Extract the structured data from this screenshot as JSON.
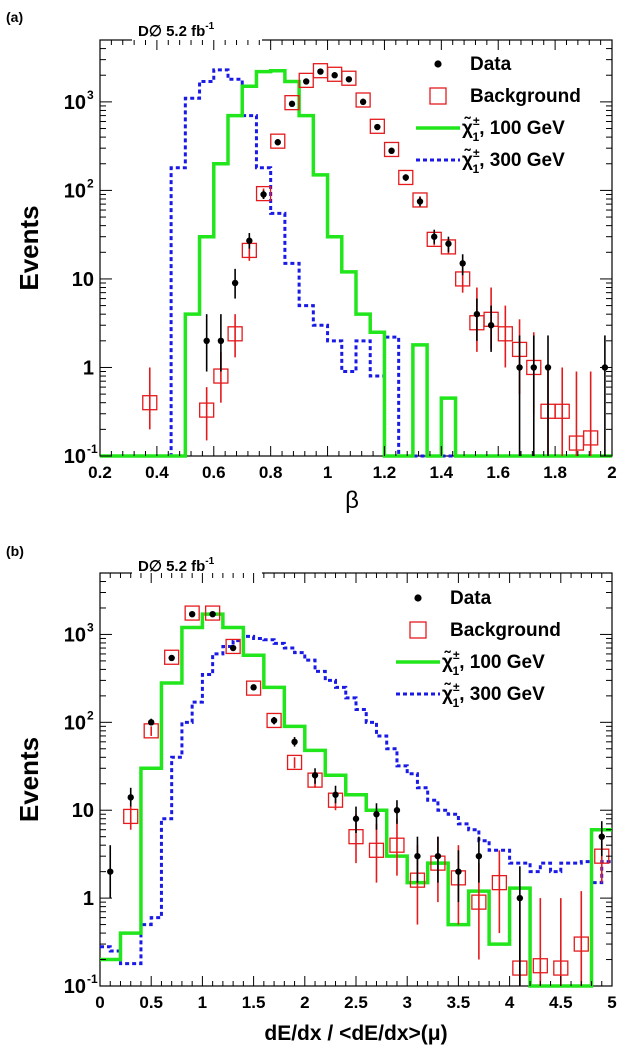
{
  "figure": "two stacked histograms with logarithmic y axes",
  "colors": {
    "data": "#000000",
    "background": "#e41a1c",
    "signal_100": "#22e61c",
    "signal_300": "#1a1ae6",
    "errorbar": "#e41a1c"
  },
  "chart_data": [
    {
      "type": "histogram",
      "panel_label": "(a)",
      "title": "D∅ 5.2 fb",
      "title_sup": "-1",
      "xlabel": "β",
      "ylabel": "Events",
      "xlim": [
        0.2,
        2.0
      ],
      "ylim": [
        0.1,
        5000
      ],
      "yscale": "log",
      "xticks": [
        "0.2",
        "0.4",
        "0.6",
        "0.8",
        "1",
        "1.2",
        "1.4",
        "1.6",
        "1.8",
        "2"
      ],
      "xtick_values": [
        0.2,
        0.4,
        0.6,
        0.8,
        1.0,
        1.2,
        1.4,
        1.6,
        1.8,
        2.0
      ],
      "ytick_labels": [
        {
          "base": "10",
          "exp": "-1",
          "v": 0.1
        },
        {
          "base": "1",
          "exp": "",
          "v": 1
        },
        {
          "base": "10",
          "exp": "",
          "v": 10
        },
        {
          "base": "10",
          "exp": "2",
          "v": 100
        },
        {
          "base": "10",
          "exp": "3",
          "v": 1000
        }
      ],
      "legend": {
        "position": "top-right",
        "entries": [
          {
            "label": "Data",
            "marker": "dot"
          },
          {
            "label": "Background",
            "marker": "square"
          },
          {
            "label": ", 100 GeV",
            "symbol": "χ̃",
            "sup": "±",
            "sub": "1",
            "marker": "green-line"
          },
          {
            "label": ", 300 GeV",
            "symbol": "χ̃",
            "sup": "±",
            "sub": "1",
            "marker": "blue-dash"
          }
        ]
      },
      "data_points": [
        {
          "x": 0.575,
          "y": 2,
          "lo": 0.9,
          "hi": 4
        },
        {
          "x": 0.625,
          "y": 2,
          "lo": 0.9,
          "hi": 4
        },
        {
          "x": 0.675,
          "y": 9,
          "lo": 6,
          "hi": 13
        },
        {
          "x": 0.725,
          "y": 27,
          "lo": 22,
          "hi": 33
        },
        {
          "x": 0.775,
          "y": 90,
          "lo": 80,
          "hi": 100
        },
        {
          "x": 0.825,
          "y": 350,
          "lo": 330,
          "hi": 370
        },
        {
          "x": 0.875,
          "y": 950,
          "lo": 920,
          "hi": 980
        },
        {
          "x": 0.925,
          "y": 1700,
          "lo": 1660,
          "hi": 1740
        },
        {
          "x": 0.975,
          "y": 2200,
          "lo": 2150,
          "hi": 2250
        },
        {
          "x": 1.025,
          "y": 2000,
          "lo": 1950,
          "hi": 2050
        },
        {
          "x": 1.075,
          "y": 1800,
          "lo": 1750,
          "hi": 1850
        },
        {
          "x": 1.125,
          "y": 1000,
          "lo": 970,
          "hi": 1030
        },
        {
          "x": 1.175,
          "y": 520,
          "lo": 500,
          "hi": 540
        },
        {
          "x": 1.225,
          "y": 280,
          "lo": 265,
          "hi": 295
        },
        {
          "x": 1.275,
          "y": 140,
          "lo": 128,
          "hi": 152
        },
        {
          "x": 1.325,
          "y": 75,
          "lo": 66,
          "hi": 84
        },
        {
          "x": 1.375,
          "y": 30,
          "lo": 25,
          "hi": 36
        },
        {
          "x": 1.425,
          "y": 25,
          "lo": 20,
          "hi": 30
        },
        {
          "x": 1.475,
          "y": 15,
          "lo": 11,
          "hi": 19
        },
        {
          "x": 1.525,
          "y": 4,
          "lo": 2,
          "hi": 6
        },
        {
          "x": 1.575,
          "y": 3,
          "lo": 1.5,
          "hi": 5
        },
        {
          "x": 1.675,
          "y": 1,
          "lo": 0.1,
          "hi": 2.3
        },
        {
          "x": 1.725,
          "y": 1,
          "lo": 0.1,
          "hi": 2.3
        },
        {
          "x": 1.775,
          "y": 1,
          "lo": 0.1,
          "hi": 2.3
        },
        {
          "x": 1.975,
          "y": 1,
          "lo": 0.1,
          "hi": 2.3
        }
      ],
      "background_points": [
        {
          "x": 0.375,
          "y": 0.4,
          "lo": 0.2,
          "hi": 1.0
        },
        {
          "x": 0.575,
          "y": 0.33,
          "lo": 0.15,
          "hi": 0.6
        },
        {
          "x": 0.625,
          "y": 0.8,
          "lo": 0.4,
          "hi": 1.5
        },
        {
          "x": 0.675,
          "y": 2.4,
          "lo": 1.3,
          "hi": 4
        },
        {
          "x": 0.725,
          "y": 21,
          "lo": 16,
          "hi": 26
        },
        {
          "x": 0.775,
          "y": 92,
          "lo": 80,
          "hi": 105
        },
        {
          "x": 0.825,
          "y": 360,
          "lo": 340,
          "hi": 380
        },
        {
          "x": 0.875,
          "y": 980,
          "lo": 950,
          "hi": 1010
        },
        {
          "x": 0.925,
          "y": 1750,
          "lo": 1700,
          "hi": 1800
        },
        {
          "x": 0.975,
          "y": 2250,
          "lo": 2200,
          "hi": 2300
        },
        {
          "x": 1.025,
          "y": 2050,
          "lo": 2000,
          "hi": 2100
        },
        {
          "x": 1.075,
          "y": 1850,
          "lo": 1800,
          "hi": 1900
        },
        {
          "x": 1.125,
          "y": 1050,
          "lo": 1010,
          "hi": 1090
        },
        {
          "x": 1.175,
          "y": 530,
          "lo": 505,
          "hi": 555
        },
        {
          "x": 1.225,
          "y": 290,
          "lo": 275,
          "hi": 305
        },
        {
          "x": 1.275,
          "y": 140,
          "lo": 130,
          "hi": 150
        },
        {
          "x": 1.325,
          "y": 78,
          "lo": 70,
          "hi": 86
        },
        {
          "x": 1.375,
          "y": 28,
          "lo": 24,
          "hi": 32
        },
        {
          "x": 1.425,
          "y": 23,
          "lo": 19,
          "hi": 27
        },
        {
          "x": 1.475,
          "y": 10,
          "lo": 7,
          "hi": 13
        },
        {
          "x": 1.525,
          "y": 3.2,
          "lo": 1.5,
          "hi": 8
        },
        {
          "x": 1.575,
          "y": 3.5,
          "lo": 1.6,
          "hi": 8
        },
        {
          "x": 1.625,
          "y": 2.4,
          "lo": 1,
          "hi": 5
        },
        {
          "x": 1.675,
          "y": 1.6,
          "lo": 0.5,
          "hi": 3.5
        },
        {
          "x": 1.725,
          "y": 1.0,
          "lo": 0.3,
          "hi": 2.5
        },
        {
          "x": 1.775,
          "y": 0.32,
          "lo": 0.1,
          "hi": 1.0
        },
        {
          "x": 1.825,
          "y": 0.32,
          "lo": 0.1,
          "hi": 1.0
        },
        {
          "x": 1.875,
          "y": 0.14,
          "lo": 0.1,
          "hi": 0.9
        },
        {
          "x": 1.925,
          "y": 0.16,
          "lo": 0.1,
          "hi": 0.9
        }
      ],
      "signal_100_edges": [
        0.2,
        0.5,
        0.55,
        0.6,
        0.65,
        0.7,
        0.75,
        0.8,
        0.85,
        0.9,
        0.95,
        1.0,
        1.05,
        1.1,
        1.15,
        1.2,
        1.25,
        1.3,
        1.35,
        1.4,
        1.45,
        1.5,
        2.0
      ],
      "signal_100_values": [
        0.1,
        4,
        30,
        200,
        700,
        1500,
        2200,
        2250,
        1700,
        700,
        150,
        30,
        12,
        4,
        2.5,
        0.1,
        0.1,
        1.8,
        0.1,
        0.45,
        0.1,
        0.1
      ],
      "signal_300_edges": [
        0.2,
        0.45,
        0.5,
        0.55,
        0.6,
        0.65,
        0.7,
        0.75,
        0.8,
        0.85,
        0.9,
        0.95,
        1.0,
        1.05,
        1.1,
        1.15,
        1.2,
        1.25,
        2.0
      ],
      "signal_300_values": [
        0.1,
        180,
        1100,
        1700,
        2300,
        1800,
        700,
        180,
        55,
        15,
        5,
        3,
        2,
        0.9,
        2,
        0.8,
        2.2,
        0.1
      ]
    },
    {
      "type": "histogram",
      "panel_label": "(b)",
      "title": "D∅ 5.2 fb",
      "title_sup": "-1",
      "xlabel": "dE/dx / <dE/dx>(μ)",
      "ylabel": "Events",
      "xlim": [
        0,
        5
      ],
      "ylim": [
        0.1,
        5000
      ],
      "yscale": "log",
      "xticks": [
        "0",
        "0.5",
        "1",
        "1.5",
        "2",
        "2.5",
        "3",
        "3.5",
        "4",
        "4.5",
        "5"
      ],
      "xtick_values": [
        0,
        0.5,
        1,
        1.5,
        2,
        2.5,
        3,
        3.5,
        4,
        4.5,
        5
      ],
      "ytick_labels": [
        {
          "base": "10",
          "exp": "-1",
          "v": 0.1
        },
        {
          "base": "1",
          "exp": "",
          "v": 1
        },
        {
          "base": "10",
          "exp": "",
          "v": 10
        },
        {
          "base": "10",
          "exp": "2",
          "v": 100
        },
        {
          "base": "10",
          "exp": "3",
          "v": 1000
        }
      ],
      "legend": {
        "position": "top-right",
        "entries": [
          {
            "label": "Data",
            "marker": "dot"
          },
          {
            "label": "Background",
            "marker": "square"
          },
          {
            "label": ", 100 GeV",
            "symbol": "χ̃",
            "sup": "±",
            "sub": "1",
            "marker": "green-line"
          },
          {
            "label": ", 300 GeV",
            "symbol": "χ̃",
            "sup": "±",
            "sub": "1",
            "marker": "blue-dash"
          }
        ]
      },
      "data_points": [
        {
          "x": 0.1,
          "y": 2,
          "lo": 1,
          "hi": 4
        },
        {
          "x": 0.3,
          "y": 14,
          "lo": 11,
          "hi": 18
        },
        {
          "x": 0.5,
          "y": 100,
          "lo": 92,
          "hi": 110
        },
        {
          "x": 0.7,
          "y": 540,
          "lo": 520,
          "hi": 560
        },
        {
          "x": 0.9,
          "y": 1700,
          "lo": 1660,
          "hi": 1740
        },
        {
          "x": 1.1,
          "y": 1700,
          "lo": 1660,
          "hi": 1740
        },
        {
          "x": 1.3,
          "y": 700,
          "lo": 675,
          "hi": 725
        },
        {
          "x": 1.5,
          "y": 250,
          "lo": 235,
          "hi": 265
        },
        {
          "x": 1.7,
          "y": 105,
          "lo": 95,
          "hi": 115
        },
        {
          "x": 1.9,
          "y": 60,
          "lo": 53,
          "hi": 68
        },
        {
          "x": 2.1,
          "y": 25,
          "lo": 20,
          "hi": 30
        },
        {
          "x": 2.3,
          "y": 15,
          "lo": 12,
          "hi": 19
        },
        {
          "x": 2.5,
          "y": 8,
          "lo": 5.5,
          "hi": 11
        },
        {
          "x": 2.7,
          "y": 9,
          "lo": 6,
          "hi": 12
        },
        {
          "x": 2.9,
          "y": 10,
          "lo": 7,
          "hi": 13
        },
        {
          "x": 3.1,
          "y": 3,
          "lo": 1.5,
          "hi": 5
        },
        {
          "x": 3.3,
          "y": 3,
          "lo": 1.5,
          "hi": 5
        },
        {
          "x": 3.5,
          "y": 2,
          "lo": 0.9,
          "hi": 3.5
        },
        {
          "x": 3.7,
          "y": 3,
          "lo": 1.5,
          "hi": 5
        },
        {
          "x": 4.1,
          "y": 1,
          "lo": 0.1,
          "hi": 2.3
        },
        {
          "x": 4.9,
          "y": 5,
          "lo": 3,
          "hi": 7.5
        }
      ],
      "background_points": [
        {
          "x": 0.3,
          "y": 8.5,
          "lo": 6,
          "hi": 11
        },
        {
          "x": 0.5,
          "y": 80,
          "lo": 70,
          "hi": 90
        },
        {
          "x": 0.7,
          "y": 550,
          "lo": 520,
          "hi": 580
        },
        {
          "x": 0.9,
          "y": 1750,
          "lo": 1700,
          "hi": 1800
        },
        {
          "x": 1.1,
          "y": 1750,
          "lo": 1700,
          "hi": 1800
        },
        {
          "x": 1.3,
          "y": 730,
          "lo": 700,
          "hi": 760
        },
        {
          "x": 1.5,
          "y": 245,
          "lo": 230,
          "hi": 260
        },
        {
          "x": 1.7,
          "y": 105,
          "lo": 95,
          "hi": 115
        },
        {
          "x": 1.9,
          "y": 35,
          "lo": 30,
          "hi": 40
        },
        {
          "x": 2.1,
          "y": 22,
          "lo": 18,
          "hi": 26
        },
        {
          "x": 2.3,
          "y": 13,
          "lo": 10,
          "hi": 16
        },
        {
          "x": 2.5,
          "y": 5,
          "lo": 2.5,
          "hi": 9
        },
        {
          "x": 2.7,
          "y": 3.5,
          "lo": 1.5,
          "hi": 7
        },
        {
          "x": 2.9,
          "y": 4,
          "lo": 1.8,
          "hi": 8
        },
        {
          "x": 3.1,
          "y": 1.6,
          "lo": 0.5,
          "hi": 4
        },
        {
          "x": 3.3,
          "y": 2.5,
          "lo": 0.9,
          "hi": 5
        },
        {
          "x": 3.5,
          "y": 1.7,
          "lo": 0.5,
          "hi": 4
        },
        {
          "x": 3.7,
          "y": 0.9,
          "lo": 0.2,
          "hi": 2.5
        },
        {
          "x": 3.9,
          "y": 1.5,
          "lo": 0.4,
          "hi": 3.5
        },
        {
          "x": 4.1,
          "y": 0.16,
          "lo": 0.1,
          "hi": 1
        },
        {
          "x": 4.3,
          "y": 0.17,
          "lo": 0.1,
          "hi": 1
        },
        {
          "x": 4.5,
          "y": 0.16,
          "lo": 0.1,
          "hi": 1
        },
        {
          "x": 4.7,
          "y": 0.3,
          "lo": 0.1,
          "hi": 1.2
        },
        {
          "x": 4.9,
          "y": 3,
          "lo": 1.5,
          "hi": 6
        }
      ],
      "signal_100_edges": [
        0,
        0.2,
        0.4,
        0.6,
        0.8,
        1.0,
        1.2,
        1.4,
        1.6,
        1.8,
        2.0,
        2.2,
        2.4,
        2.6,
        2.8,
        3.0,
        3.2,
        3.4,
        3.6,
        3.8,
        4.0,
        4.2,
        4.4,
        4.6,
        4.8,
        5.0
      ],
      "signal_100_values": [
        0.2,
        0.4,
        30,
        280,
        1200,
        1700,
        1200,
        580,
        250,
        90,
        48,
        25,
        15,
        10,
        3,
        1.5,
        2.5,
        0.5,
        1.2,
        0.3,
        1.3,
        0.1,
        0.1,
        0.1,
        6
      ],
      "signal_300_edges": [
        0,
        0.1,
        0.2,
        0.3,
        0.4,
        0.5,
        0.6,
        0.7,
        0.8,
        0.9,
        1.0,
        1.1,
        1.2,
        1.3,
        1.4,
        1.5,
        1.6,
        1.7,
        1.8,
        1.9,
        2.0,
        2.1,
        2.2,
        2.3,
        2.4,
        2.5,
        2.6,
        2.7,
        2.8,
        2.9,
        3.0,
        3.1,
        3.2,
        3.3,
        3.4,
        3.5,
        3.6,
        3.7,
        3.8,
        3.9,
        4.0,
        4.1,
        4.2,
        4.3,
        4.4,
        4.5,
        4.6,
        4.7,
        4.8,
        4.9,
        5.0
      ],
      "signal_300_values": [
        0.28,
        0.25,
        0.18,
        0.18,
        0.5,
        0.6,
        8,
        40,
        100,
        170,
        350,
        600,
        730,
        850,
        950,
        900,
        870,
        790,
        700,
        620,
        510,
        380,
        300,
        250,
        190,
        140,
        100,
        70,
        50,
        32,
        26,
        18,
        13,
        10,
        9,
        7,
        6,
        4.5,
        3.5,
        3.5,
        2.5,
        2.5,
        2,
        2.5,
        2,
        2.5,
        2.5,
        2.6,
        1.5,
        2.6
      ]
    }
  ]
}
